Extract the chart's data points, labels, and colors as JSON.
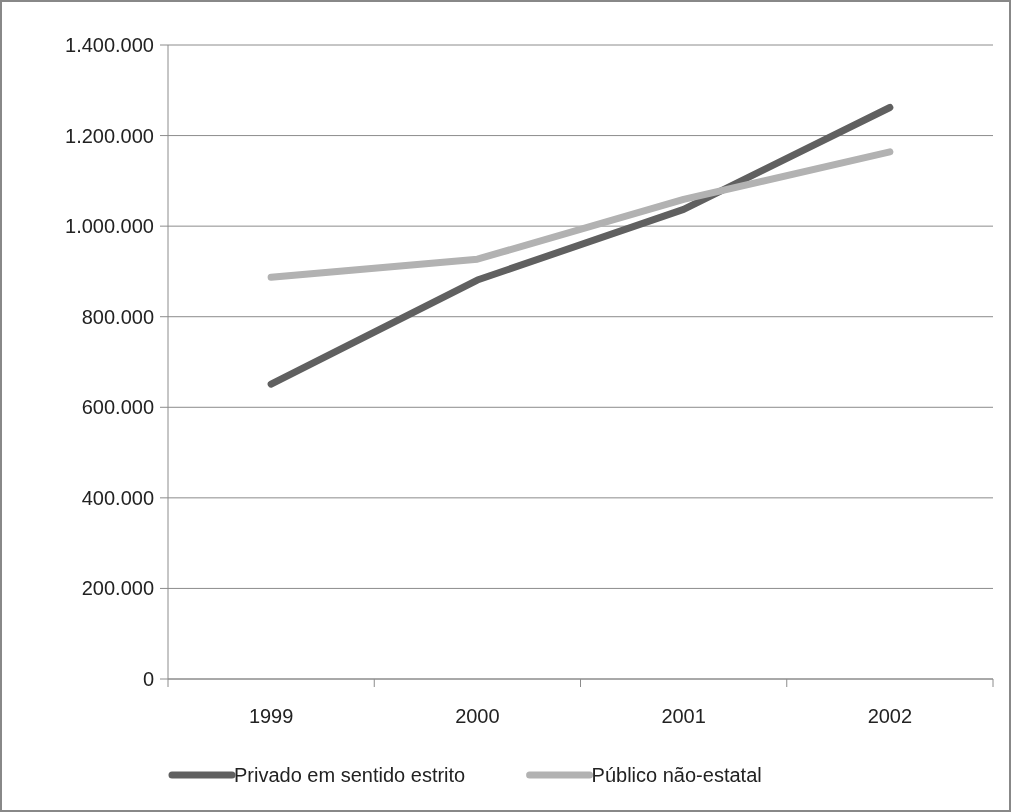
{
  "chart_data": {
    "type": "line",
    "categories": [
      "1999",
      "2000",
      "2001",
      "2002"
    ],
    "series": [
      {
        "name": "Privado em sentido estrito",
        "color": "#606060",
        "values": [
          651000,
          881000,
          1037000,
          1262000
        ]
      },
      {
        "name": "Público não-estatal",
        "color": "#b2b2b2",
        "values": [
          887000,
          927000,
          1059000,
          1164000
        ]
      }
    ],
    "ylim": [
      0,
      1400000
    ],
    "yticks": [
      {
        "value": 0,
        "label": "0"
      },
      {
        "value": 200000,
        "label": "200.000"
      },
      {
        "value": 400000,
        "label": "400.000"
      },
      {
        "value": 600000,
        "label": "600.000"
      },
      {
        "value": 800000,
        "label": "800.000"
      },
      {
        "value": 1000000,
        "label": "1.000.000"
      },
      {
        "value": 1200000,
        "label": "1.200.000"
      },
      {
        "value": 1400000,
        "label": "1.400.000"
      }
    ],
    "grid": "y",
    "legend": "bottom",
    "marker": "none",
    "line_style": "solid"
  }
}
